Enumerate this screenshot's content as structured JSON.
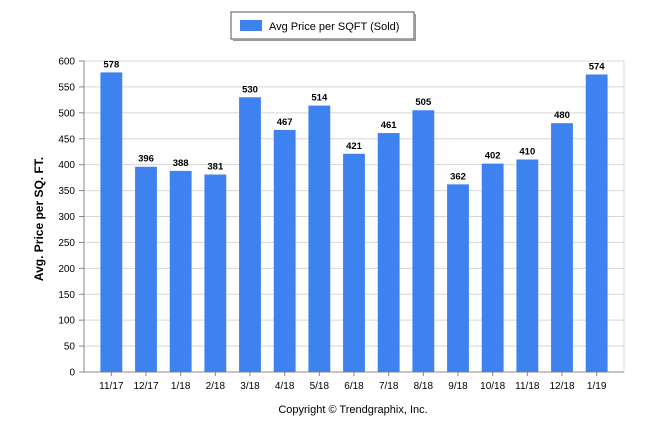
{
  "chart_data": {
    "type": "bar",
    "categories": [
      "11/17",
      "12/17",
      "1/18",
      "2/18",
      "3/18",
      "4/18",
      "5/18",
      "6/18",
      "7/18",
      "8/18",
      "9/18",
      "10/18",
      "11/18",
      "12/18",
      "1/19"
    ],
    "series": [
      {
        "name": "Avg Price per SQFT (Sold)",
        "values": [
          578,
          396,
          388,
          381,
          530,
          467,
          514,
          421,
          461,
          505,
          362,
          402,
          410,
          480,
          574
        ],
        "color": "#3d82ee"
      }
    ],
    "ylabel": "Avg. Price per SQ. FT.",
    "xlabel": "",
    "ylim": [
      0,
      600
    ],
    "yticks": [
      0,
      50,
      100,
      150,
      200,
      250,
      300,
      350,
      400,
      450,
      500,
      550,
      600
    ],
    "grid": true,
    "legend_position": "top-center",
    "data_labels": true
  },
  "footer": {
    "copyright": "Copyright © Trendgraphix, Inc."
  },
  "colors": {
    "bar": "#3d82ee",
    "grid": "#d8d8d8",
    "axis": "#888888"
  }
}
